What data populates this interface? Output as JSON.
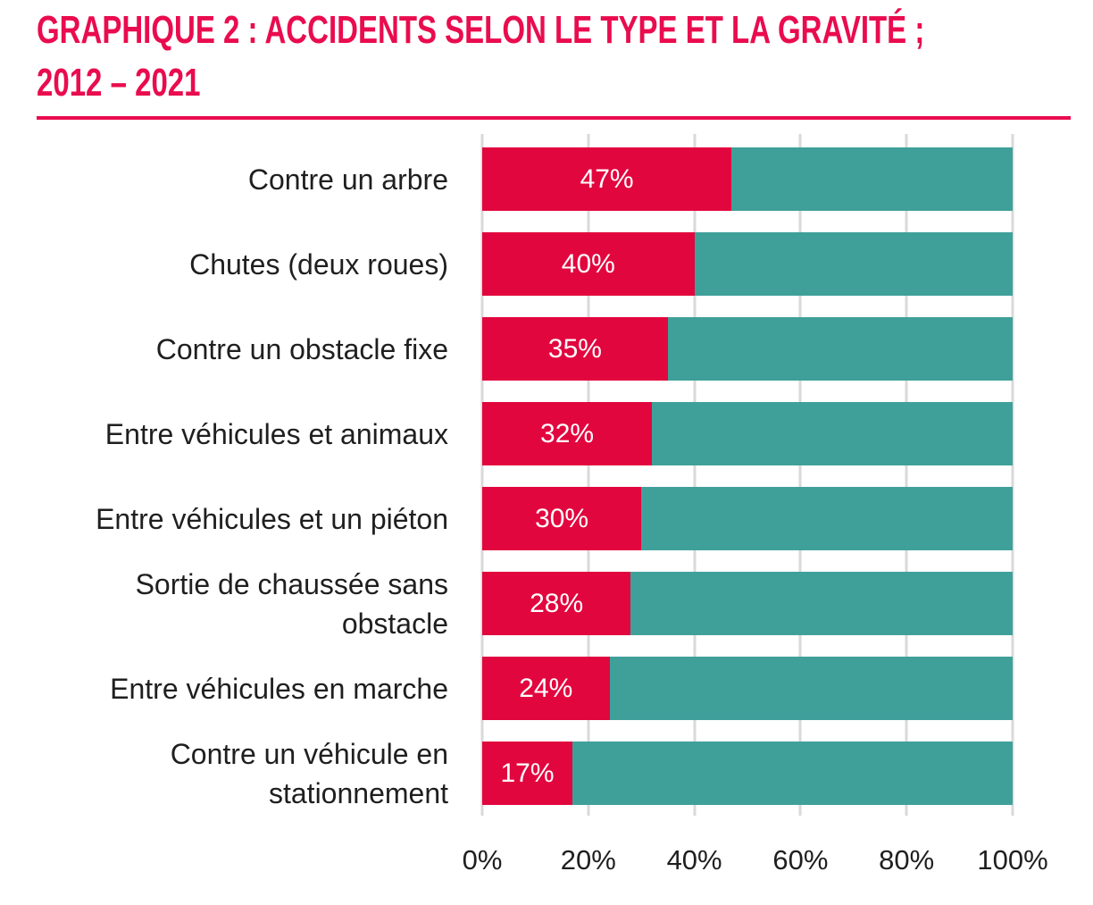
{
  "title": {
    "line1": "GRAPHIQUE 2 : ACCIDENTS SELON LE TYPE ET LA GRAVITÉ ;",
    "line2": "2012 – 2021"
  },
  "colors": {
    "severe": "#e2063e",
    "other": "#3fa09a",
    "accent": "#e90c4e",
    "gridline": "#d9d9d9",
    "text": "#1f1f1f",
    "bartext": "#ffffff",
    "bg": "#ffffff"
  },
  "chart_data": {
    "type": "bar",
    "orientation": "horizontal",
    "stacked": true,
    "title": "GRAPHIQUE 2 : ACCIDENTS SELON LE TYPE ET LA GRAVITÉ ; 2012 – 2021",
    "categories": [
      "Contre un arbre",
      "Chutes (deux roues)",
      "Contre un obstacle fixe",
      "Entre véhicules et animaux",
      "Entre véhicules et un piéton",
      "Sortie de chaussée sans\nobstacle",
      "Entre véhicules en marche",
      "Contre un véhicule en\nstationnement"
    ],
    "series": [
      {
        "name": "red",
        "color": "#e2063e",
        "values": [
          47,
          40,
          35,
          32,
          30,
          28,
          24,
          17
        ]
      },
      {
        "name": "teal",
        "color": "#3fa09a",
        "values": [
          53,
          60,
          65,
          68,
          70,
          72,
          76,
          83
        ]
      }
    ],
    "bar_labels": [
      "47%",
      "40%",
      "35%",
      "32%",
      "30%",
      "28%",
      "24%",
      "17%"
    ],
    "x_ticks": [
      "0%",
      "20%",
      "40%",
      "60%",
      "80%",
      "100%"
    ],
    "xlim": [
      0,
      100
    ],
    "grid": "vertical",
    "legend": false
  }
}
